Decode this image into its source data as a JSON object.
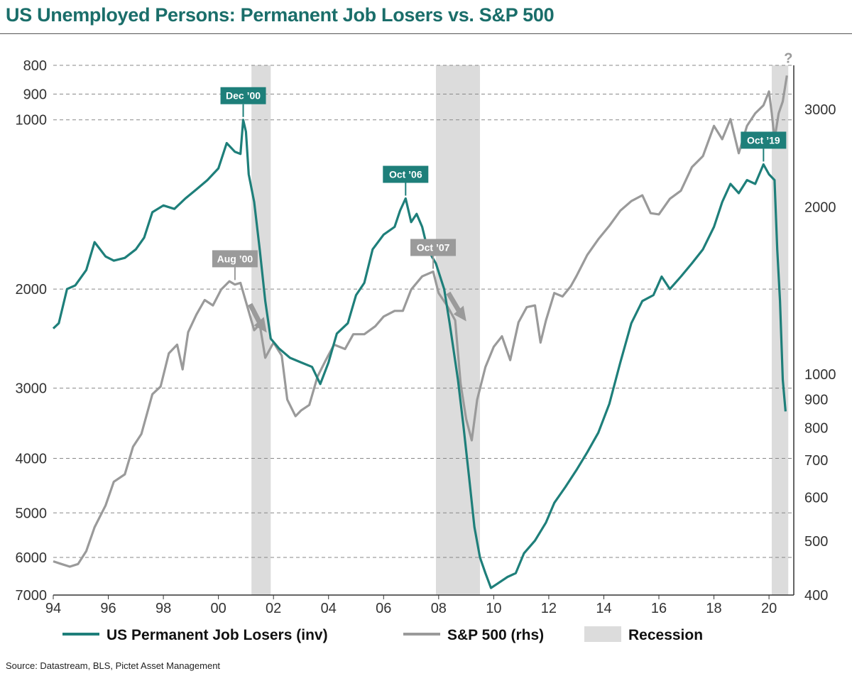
{
  "title": "US Unemployed Persons: Permanent Job Losers vs. S&P 500",
  "source": "Source: Datastream, BLS, Pictet Asset Management",
  "colors": {
    "teal": "#1e7f7a",
    "grey": "#9a9a9a",
    "recession": "#dcdcdc",
    "title": "#1a6e6a"
  },
  "chart_data": {
    "type": "line",
    "xlabel": "",
    "x_ticks": [
      "94",
      "96",
      "98",
      "00",
      "02",
      "04",
      "06",
      "08",
      "10",
      "12",
      "14",
      "16",
      "18",
      "20"
    ],
    "x_range": [
      1994,
      2020.9
    ],
    "left_axis": {
      "label": "",
      "inverted": true,
      "log": true,
      "range": [
        800,
        7000
      ],
      "ticks": [
        "800",
        "900",
        "1000",
        "2000",
        "3000",
        "4000",
        "5000",
        "6000",
        "7000"
      ]
    },
    "right_axis": {
      "label": "",
      "log": true,
      "range": [
        400,
        3600
      ],
      "ticks": [
        "3000",
        "2000",
        "1000",
        "900",
        "800",
        "700",
        "600",
        "500",
        "400"
      ]
    },
    "grid": "dashed horizontal at left-axis ticks",
    "legend_position": "bottom",
    "legend": [
      {
        "label": "US Permanent Job Losers (inv)",
        "kind": "line",
        "color": "#1e7f7a"
      },
      {
        "label": "S&P 500 (rhs)",
        "kind": "line",
        "color": "#9a9a9a"
      },
      {
        "label": "Recession",
        "kind": "band",
        "color": "#dcdcdc"
      }
    ],
    "recessions": [
      [
        2001.2,
        2001.9
      ],
      [
        2007.9,
        2009.5
      ],
      [
        2020.1,
        2020.7
      ]
    ],
    "series": [
      {
        "name": "US Permanent Job Losers (inv)",
        "axis": "left",
        "points": [
          [
            1994.0,
            2350
          ],
          [
            1994.2,
            2300
          ],
          [
            1994.5,
            2000
          ],
          [
            1994.8,
            1970
          ],
          [
            1995.2,
            1850
          ],
          [
            1995.5,
            1650
          ],
          [
            1995.9,
            1750
          ],
          [
            1996.2,
            1780
          ],
          [
            1996.6,
            1760
          ],
          [
            1997.0,
            1700
          ],
          [
            1997.3,
            1620
          ],
          [
            1997.6,
            1460
          ],
          [
            1998.0,
            1420
          ],
          [
            1998.4,
            1440
          ],
          [
            1998.8,
            1380
          ],
          [
            1999.2,
            1330
          ],
          [
            1999.6,
            1280
          ],
          [
            2000.0,
            1220
          ],
          [
            2000.3,
            1100
          ],
          [
            2000.6,
            1140
          ],
          [
            2000.8,
            1150
          ],
          [
            2000.9,
            1000
          ],
          [
            2001.0,
            1050
          ],
          [
            2001.1,
            1250
          ],
          [
            2001.3,
            1400
          ],
          [
            2001.5,
            1700
          ],
          [
            2001.7,
            2100
          ],
          [
            2001.9,
            2450
          ],
          [
            2002.2,
            2550
          ],
          [
            2002.6,
            2650
          ],
          [
            2003.0,
            2700
          ],
          [
            2003.4,
            2750
          ],
          [
            2003.7,
            2950
          ],
          [
            2004.0,
            2700
          ],
          [
            2004.3,
            2400
          ],
          [
            2004.7,
            2300
          ],
          [
            2005.0,
            2050
          ],
          [
            2005.3,
            1950
          ],
          [
            2005.6,
            1700
          ],
          [
            2006.0,
            1600
          ],
          [
            2006.4,
            1550
          ],
          [
            2006.6,
            1450
          ],
          [
            2006.8,
            1380
          ],
          [
            2007.0,
            1520
          ],
          [
            2007.2,
            1470
          ],
          [
            2007.4,
            1550
          ],
          [
            2007.6,
            1700
          ],
          [
            2007.9,
            1800
          ],
          [
            2008.2,
            2000
          ],
          [
            2008.4,
            2300
          ],
          [
            2008.7,
            2900
          ],
          [
            2008.9,
            3500
          ],
          [
            2009.1,
            4300
          ],
          [
            2009.3,
            5300
          ],
          [
            2009.5,
            6000
          ],
          [
            2009.7,
            6400
          ],
          [
            2009.9,
            6800
          ],
          [
            2010.1,
            6700
          ],
          [
            2010.5,
            6500
          ],
          [
            2010.8,
            6400
          ],
          [
            2011.1,
            5900
          ],
          [
            2011.5,
            5600
          ],
          [
            2011.9,
            5200
          ],
          [
            2012.2,
            4800
          ],
          [
            2012.6,
            4500
          ],
          [
            2013.0,
            4200
          ],
          [
            2013.4,
            3900
          ],
          [
            2013.8,
            3600
          ],
          [
            2014.2,
            3200
          ],
          [
            2014.6,
            2700
          ],
          [
            2015.0,
            2300
          ],
          [
            2015.4,
            2100
          ],
          [
            2015.8,
            2050
          ],
          [
            2016.1,
            1900
          ],
          [
            2016.4,
            2000
          ],
          [
            2016.8,
            1900
          ],
          [
            2017.2,
            1800
          ],
          [
            2017.6,
            1700
          ],
          [
            2018.0,
            1550
          ],
          [
            2018.3,
            1400
          ],
          [
            2018.6,
            1300
          ],
          [
            2018.9,
            1350
          ],
          [
            2019.2,
            1280
          ],
          [
            2019.5,
            1300
          ],
          [
            2019.8,
            1200
          ],
          [
            2020.0,
            1250
          ],
          [
            2020.2,
            1280
          ],
          [
            2020.3,
            1700
          ],
          [
            2020.4,
            2100
          ],
          [
            2020.5,
            2900
          ],
          [
            2020.6,
            3300
          ]
        ]
      },
      {
        "name": "S&P 500 (rhs)",
        "axis": "right",
        "points": [
          [
            1994.0,
            460
          ],
          [
            1994.3,
            455
          ],
          [
            1994.6,
            450
          ],
          [
            1994.9,
            455
          ],
          [
            1995.2,
            480
          ],
          [
            1995.5,
            530
          ],
          [
            1995.9,
            580
          ],
          [
            1996.2,
            640
          ],
          [
            1996.6,
            660
          ],
          [
            1996.9,
            740
          ],
          [
            1997.2,
            780
          ],
          [
            1997.6,
            920
          ],
          [
            1997.9,
            950
          ],
          [
            1998.2,
            1090
          ],
          [
            1998.5,
            1130
          ],
          [
            1998.7,
            1020
          ],
          [
            1998.9,
            1190
          ],
          [
            1999.2,
            1280
          ],
          [
            1999.5,
            1360
          ],
          [
            1999.8,
            1330
          ],
          [
            2000.1,
            1420
          ],
          [
            2000.4,
            1470
          ],
          [
            2000.6,
            1450
          ],
          [
            2000.8,
            1460
          ],
          [
            2001.0,
            1350
          ],
          [
            2001.3,
            1200
          ],
          [
            2001.5,
            1230
          ],
          [
            2001.7,
            1070
          ],
          [
            2002.0,
            1140
          ],
          [
            2002.3,
            1080
          ],
          [
            2002.5,
            900
          ],
          [
            2002.8,
            840
          ],
          [
            2003.0,
            860
          ],
          [
            2003.3,
            880
          ],
          [
            2003.6,
            990
          ],
          [
            2003.9,
            1060
          ],
          [
            2004.2,
            1130
          ],
          [
            2004.6,
            1110
          ],
          [
            2004.9,
            1180
          ],
          [
            2005.3,
            1180
          ],
          [
            2005.7,
            1220
          ],
          [
            2006.0,
            1270
          ],
          [
            2006.4,
            1300
          ],
          [
            2006.7,
            1300
          ],
          [
            2007.0,
            1420
          ],
          [
            2007.4,
            1500
          ],
          [
            2007.8,
            1530
          ],
          [
            2008.0,
            1400
          ],
          [
            2008.3,
            1330
          ],
          [
            2008.6,
            1250
          ],
          [
            2008.8,
            960
          ],
          [
            2009.0,
            830
          ],
          [
            2009.2,
            760
          ],
          [
            2009.4,
            900
          ],
          [
            2009.7,
            1030
          ],
          [
            2010.0,
            1120
          ],
          [
            2010.3,
            1170
          ],
          [
            2010.6,
            1060
          ],
          [
            2010.9,
            1240
          ],
          [
            2011.2,
            1320
          ],
          [
            2011.5,
            1330
          ],
          [
            2011.7,
            1140
          ],
          [
            2011.9,
            1250
          ],
          [
            2012.2,
            1400
          ],
          [
            2012.5,
            1380
          ],
          [
            2012.8,
            1440
          ],
          [
            2013.0,
            1500
          ],
          [
            2013.4,
            1640
          ],
          [
            2013.8,
            1750
          ],
          [
            2014.2,
            1850
          ],
          [
            2014.6,
            1970
          ],
          [
            2015.0,
            2050
          ],
          [
            2015.4,
            2100
          ],
          [
            2015.7,
            1950
          ],
          [
            2016.0,
            1940
          ],
          [
            2016.4,
            2070
          ],
          [
            2016.8,
            2140
          ],
          [
            2017.2,
            2360
          ],
          [
            2017.6,
            2470
          ],
          [
            2018.0,
            2800
          ],
          [
            2018.3,
            2650
          ],
          [
            2018.6,
            2880
          ],
          [
            2018.9,
            2500
          ],
          [
            2019.2,
            2800
          ],
          [
            2019.5,
            2950
          ],
          [
            2019.8,
            3050
          ],
          [
            2020.0,
            3230
          ],
          [
            2020.1,
            2950
          ],
          [
            2020.2,
            2650
          ],
          [
            2020.35,
            2950
          ],
          [
            2020.5,
            3100
          ],
          [
            2020.65,
            3450
          ]
        ]
      }
    ],
    "annotations": [
      {
        "text": "Dec ’00",
        "style": "teal",
        "x": 2000.9,
        "axis": "left",
        "y": 1000
      },
      {
        "text": "Aug ’00",
        "style": "grey",
        "x": 2000.6,
        "axis": "right",
        "y": 1460
      },
      {
        "text": "Oct ’06",
        "style": "teal",
        "x": 2006.8,
        "axis": "left",
        "y": 1380
      },
      {
        "text": "Oct ’07",
        "style": "grey",
        "x": 2007.8,
        "axis": "right",
        "y": 1530
      },
      {
        "text": "Oct ’19",
        "style": "teal",
        "x": 2019.8,
        "axis": "left",
        "y": 1200
      },
      {
        "text": "?",
        "style": "plain",
        "x": 2020.65,
        "axis": "right",
        "y": 3450
      }
    ]
  }
}
